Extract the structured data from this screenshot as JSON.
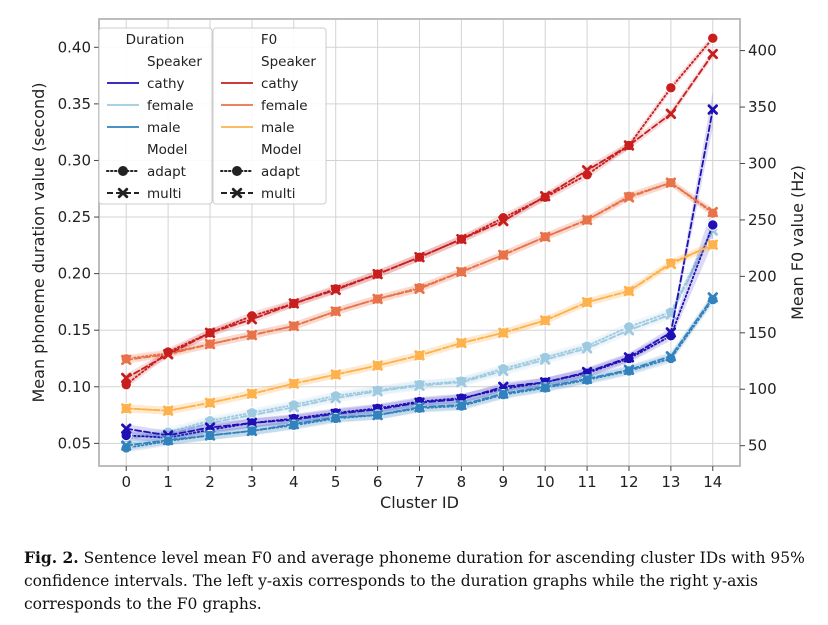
{
  "chart_data": {
    "type": "line",
    "xlabel": "Cluster ID",
    "ylabel_left": "Mean phoneme duration value (second)",
    "ylabel_right": "Mean F0 value (Hz)",
    "x": [
      0,
      1,
      2,
      3,
      4,
      5,
      6,
      7,
      8,
      9,
      10,
      11,
      12,
      13,
      14
    ],
    "x_ticks": [
      "0",
      "1",
      "2",
      "3",
      "4",
      "5",
      "6",
      "7",
      "8",
      "9",
      "10",
      "11",
      "12",
      "13",
      "14"
    ],
    "xlim": [
      -0.65,
      14.65
    ],
    "ylim_left": [
      0.03,
      0.425
    ],
    "ylim_right": [
      32,
      428
    ],
    "y_ticks_left": [
      "0.05",
      "0.10",
      "0.15",
      "0.20",
      "0.25",
      "0.30",
      "0.35",
      "0.40"
    ],
    "y_tick_values_left": [
      0.05,
      0.1,
      0.15,
      0.2,
      0.25,
      0.3,
      0.35,
      0.4
    ],
    "y_ticks_right": [
      "50",
      "100",
      "150",
      "200",
      "250",
      "300",
      "350",
      "400"
    ],
    "y_tick_values_right": [
      50,
      100,
      150,
      200,
      250,
      300,
      350,
      400
    ],
    "grid": true,
    "colors": {
      "dur_cathy": "#1e10b4",
      "dur_female": "#9ecae1",
      "dur_male": "#3282bd",
      "f0_cathy": "#c81e1e",
      "f0_female": "#e8734a",
      "f0_male": "#fdb24e"
    },
    "series": [
      {
        "group": "duration",
        "speaker": "cathy",
        "model": "adapt",
        "values": [
          0.057,
          0.055,
          0.062,
          0.068,
          0.072,
          0.077,
          0.081,
          0.087,
          0.09,
          0.098,
          0.104,
          0.112,
          0.125,
          0.145,
          0.243
        ]
      },
      {
        "group": "duration",
        "speaker": "cathy",
        "model": "multi",
        "values": [
          0.063,
          0.057,
          0.064,
          0.068,
          0.071,
          0.076,
          0.08,
          0.086,
          0.089,
          0.1,
          0.104,
          0.113,
          0.126,
          0.148,
          0.345
        ]
      },
      {
        "group": "duration",
        "speaker": "female",
        "model": "adapt",
        "values": [
          0.055,
          0.06,
          0.07,
          0.077,
          0.084,
          0.092,
          0.097,
          0.102,
          0.105,
          0.116,
          0.126,
          0.136,
          0.153,
          0.166,
          0.24
        ]
      },
      {
        "group": "duration",
        "speaker": "female",
        "model": "multi",
        "values": [
          0.054,
          0.058,
          0.068,
          0.075,
          0.082,
          0.09,
          0.096,
          0.101,
          0.104,
          0.114,
          0.124,
          0.134,
          0.15,
          0.164,
          0.238
        ]
      },
      {
        "group": "duration",
        "speaker": "male",
        "model": "adapt",
        "values": [
          0.046,
          0.052,
          0.057,
          0.061,
          0.066,
          0.072,
          0.075,
          0.081,
          0.083,
          0.093,
          0.099,
          0.106,
          0.114,
          0.125,
          0.177
        ]
      },
      {
        "group": "duration",
        "speaker": "male",
        "model": "multi",
        "values": [
          0.048,
          0.053,
          0.057,
          0.061,
          0.067,
          0.073,
          0.075,
          0.082,
          0.084,
          0.094,
          0.1,
          0.107,
          0.115,
          0.127,
          0.179
        ]
      },
      {
        "group": "f0",
        "speaker": "cathy",
        "model": "adapt",
        "values": [
          104,
          133,
          150,
          165,
          176,
          189,
          202,
          217,
          233,
          252,
          270,
          290,
          316,
          367,
          411
        ]
      },
      {
        "group": "f0",
        "speaker": "cathy",
        "model": "multi",
        "values": [
          110,
          131,
          150,
          162,
          176,
          188,
          202,
          217,
          233,
          249,
          271,
          294,
          316,
          344,
          397
        ]
      },
      {
        "group": "f0",
        "speaker": "female",
        "model": "adapt",
        "values": [
          127,
          132,
          140,
          148,
          156,
          169,
          180,
          190,
          204,
          219,
          235,
          250,
          271,
          283,
          256
        ]
      },
      {
        "group": "f0",
        "speaker": "female",
        "model": "multi",
        "values": [
          126,
          131,
          140,
          148,
          156,
          169,
          180,
          189,
          204,
          219,
          235,
          250,
          270,
          283,
          257
        ]
      },
      {
        "group": "f0",
        "speaker": "male",
        "model": "adapt",
        "values": [
          83,
          81,
          88,
          96,
          105,
          113,
          121,
          130,
          141,
          150,
          161,
          177,
          187,
          212,
          228
        ]
      },
      {
        "group": "f0",
        "speaker": "male",
        "model": "multi",
        "values": [
          83,
          81,
          88,
          96,
          105,
          113,
          121,
          130,
          141,
          150,
          161,
          177,
          187,
          211,
          228
        ]
      }
    ],
    "legend": {
      "placement": "top-left",
      "duration": {
        "title": "Duration",
        "speaker_header": "Speaker",
        "speakers": [
          "cathy",
          "female",
          "male"
        ],
        "model_header": "Model",
        "models": [
          "adapt",
          "multi"
        ]
      },
      "f0": {
        "title": "F0",
        "speaker_header": "Speaker",
        "speakers": [
          "cathy",
          "female",
          "male"
        ],
        "model_header": "Model",
        "models": [
          "adapt",
          "multi"
        ]
      }
    }
  },
  "caption": {
    "label": "Fig. 2.",
    "text": " Sentence level mean F0 and average phoneme duration for ascending cluster IDs with 95% confidence intervals. The left y-axis corresponds to the duration graphs while the right y-axis corresponds to the F0 graphs."
  }
}
